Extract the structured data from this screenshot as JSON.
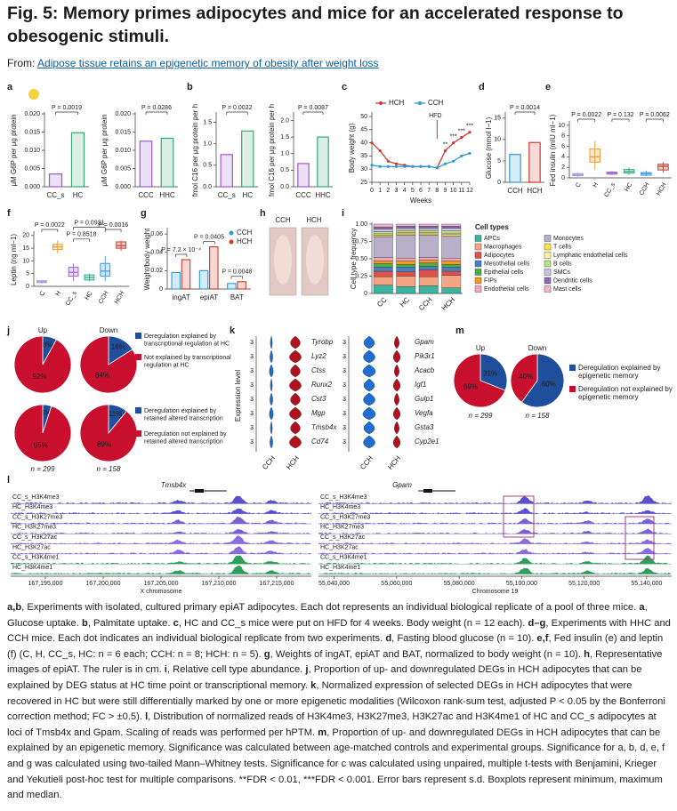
{
  "header": {
    "title": "Fig. 5: Memory primes adipocytes and mice for an accelerated response to obesogenic stimuli.",
    "from_label": "From:",
    "source_link": "Adipose tissue retains an epigenetic memory of obesity after weight loss"
  },
  "figure": {
    "a": {
      "label": "a",
      "charts": [
        {
          "type": "bar",
          "ylabel": "μM G6P per μg protein",
          "ylim": [
            0,
            0.02
          ],
          "yticks": [
            {
              "value": 0,
              "label": "0.000"
            },
            0.005,
            {
              "value": 0.01,
              "label": "0.010"
            },
            0.015,
            {
              "value": 0.02,
              "label": "0.020"
            }
          ],
          "categories": [
            "CC_s",
            "HC"
          ],
          "values": [
            0.0035,
            0.0148
          ],
          "colors": [
            "#9b59d0",
            "#3aa676"
          ],
          "p_label": "P = 0.0019"
        },
        {
          "type": "bar",
          "ylabel": "μM G6P per μg protein",
          "ylim": [
            0,
            0.02
          ],
          "yticks": [
            {
              "value": 0,
              "label": "0.000"
            },
            0.005,
            {
              "value": 0.01,
              "label": "0.010"
            },
            0.015,
            {
              "value": 0.02,
              "label": "0.020"
            }
          ],
          "categories": [
            "CCC",
            "HHC"
          ],
          "values": [
            0.0125,
            0.0133
          ],
          "colors": [
            "#9b59d0",
            "#3aa676"
          ],
          "p_label": "P = 0.0286"
        }
      ]
    },
    "b": {
      "label": "b",
      "charts": [
        {
          "type": "bar",
          "ylabel": "fmol C16 per μg protein per h",
          "ylim": [
            0,
            1.7
          ],
          "yticks": [
            {
              "value": 0,
              "label": "0.0"
            },
            0.5,
            {
              "value": 1,
              "label": "1.0"
            },
            1.5
          ],
          "categories": [
            "CC_s",
            "HC"
          ],
          "values": [
            0.75,
            1.3
          ],
          "colors": [
            "#9b59d0",
            "#3aa676"
          ],
          "p_label": "P = 0.0022"
        },
        {
          "type": "bar",
          "ylabel": "fmol C16 per μg protein per h",
          "ylim": [
            0,
            2.2
          ],
          "yticks": [
            {
              "value": 0,
              "label": "0.0"
            },
            0.5,
            {
              "value": 1,
              "label": "1.0"
            },
            1.5,
            {
              "value": 2,
              "label": "2.0"
            }
          ],
          "categories": [
            "CCC",
            "HHC"
          ],
          "values": [
            0.7,
            1.5
          ],
          "colors": [
            "#9b59d0",
            "#3aa676"
          ],
          "p_label": "P = 0.0087"
        }
      ]
    },
    "c": {
      "label": "c",
      "type": "line",
      "ylabel": "Body weight (g)",
      "xlabel": "Weeks",
      "x": [
        0,
        1,
        2,
        3,
        4,
        5,
        6,
        7,
        8,
        9,
        10,
        11,
        12
      ],
      "xlim": [
        0,
        12
      ],
      "xticks": [
        0,
        1,
        2,
        3,
        4,
        5,
        6,
        7,
        8,
        9,
        10,
        11,
        12
      ],
      "ylim": [
        25,
        51
      ],
      "yticks": [
        25,
        30,
        35,
        40,
        45,
        50
      ],
      "series": [
        {
          "name": "HCH",
          "color": "#d03a2a",
          "values": [
            40,
            37,
            33,
            32,
            31.5,
            31,
            31,
            31,
            30.5,
            37,
            40,
            42,
            44
          ]
        },
        {
          "name": "CCH",
          "color": "#2e9bd6",
          "values": [
            31.5,
            31,
            31,
            31,
            31,
            31,
            31,
            31,
            30.5,
            32,
            33,
            35,
            36
          ]
        }
      ],
      "hfd_label": "HFD",
      "significance": [
        "**",
        "***",
        "***",
        "***"
      ]
    },
    "d": {
      "label": "d",
      "charts": [
        {
          "type": "bar",
          "ylabel": "Glucose (mmol l−1)",
          "ylim": [
            0,
            16
          ],
          "yticks": [
            0,
            5,
            10,
            15
          ],
          "categories": [
            "CCH",
            "HCH"
          ],
          "values": [
            6.5,
            9.3
          ],
          "colors": [
            "#2e9bd6",
            "#d03a2a"
          ],
          "p_label": "P = 0.0014"
        }
      ]
    },
    "e": {
      "label": "e",
      "type": "box",
      "ylabel": "Fed insulin (mIU ml−1)",
      "ylim": [
        0,
        10.5
      ],
      "yticks": [
        0,
        2,
        4,
        6,
        8,
        10
      ],
      "categories": [
        "C",
        "H",
        "CC_s",
        "HC",
        "CCH",
        "HCH"
      ],
      "colors": [
        "#a99de0",
        "#e8a33d",
        "#a070d8",
        "#40b090",
        "#4aa3df",
        "#c94a3a"
      ],
      "min": [
        0.2,
        1.5,
        0.5,
        0.6,
        0.3,
        1.0
      ],
      "q1": [
        0.4,
        3,
        0.7,
        0.9,
        0.5,
        1.5
      ],
      "median": [
        0.6,
        4,
        0.9,
        1.2,
        0.8,
        2.2
      ],
      "q3": [
        0.8,
        5.5,
        1.1,
        1.6,
        1.0,
        2.6
      ],
      "max": [
        1.0,
        7,
        1.3,
        2.0,
        1.4,
        3.0
      ],
      "p_labels": [
        "P = 0.0022",
        "P = 0.132",
        "P = 0.0062"
      ]
    },
    "f": {
      "label": "f",
      "type": "box",
      "ylabel": "Leptin (ng ml−1)",
      "ylim": [
        0,
        21
      ],
      "yticks": [
        0,
        5,
        10,
        15,
        20
      ],
      "categories": [
        "C",
        "H",
        "CC_s",
        "HC",
        "CCH",
        "HCH"
      ],
      "colors": [
        "#a99de0",
        "#e8a33d",
        "#a070d8",
        "#40b090",
        "#4aa3df",
        "#c94a3a"
      ],
      "min": [
        1,
        13,
        2,
        2,
        2,
        14
      ],
      "q1": [
        1.5,
        14.5,
        4,
        2.5,
        4,
        15
      ],
      "median": [
        1.8,
        15.5,
        5.5,
        3.5,
        6,
        16
      ],
      "q3": [
        2.2,
        16.5,
        7.5,
        4.5,
        9,
        17.5
      ],
      "max": [
        2.5,
        18,
        9,
        5,
        12,
        18
      ],
      "p_labels": [
        "P = 0.0022",
        "P = 0.0931",
        "P = 0.0016",
        "P = 0.8518"
      ]
    },
    "g": {
      "label": "g",
      "type": "grouped_bar",
      "ylabel": "Weight/body weight",
      "ylim": [
        0,
        0.065
      ],
      "yticks": [
        0,
        0.02,
        0.04,
        0.06
      ],
      "categories": [
        "ingAT",
        "epiAT",
        "BAT"
      ],
      "series": [
        {
          "name": "CCH",
          "color": "#2e9bd6",
          "values": [
            0.018,
            0.02,
            0.006
          ]
        },
        {
          "name": "HCH",
          "color": "#d03a2a",
          "values": [
            0.032,
            0.046,
            0.008
          ]
        }
      ],
      "p_labels": [
        "P = 7.2 × 10⁻⁴",
        "P = 0.0405",
        "P = 0.0048"
      ]
    },
    "h": {
      "label": "h",
      "images": [
        "CCH",
        "HCH"
      ]
    },
    "i": {
      "label": "i",
      "type": "stacked_bar",
      "ylabel": "Cell type frequency",
      "ylim": [
        0,
        1
      ],
      "yticks": [
        0,
        0.25,
        {
          "value": 0.5,
          "label": "0.50"
        },
        0.75,
        {
          "value": 1,
          "label": "1.00"
        }
      ],
      "categories": [
        "CC",
        "HC",
        "CCH",
        "HCH"
      ],
      "legend_title": "Cell types",
      "series": [
        {
          "name": "APCs",
          "color": "#3cb4a0",
          "values": [
            0.12,
            0.1,
            0.11,
            0.08
          ]
        },
        {
          "name": "Macrophages",
          "color": "#f4a582",
          "values": [
            0.12,
            0.15,
            0.13,
            0.18
          ]
        },
        {
          "name": "Adipocytes",
          "color": "#e0504a",
          "values": [
            0.08,
            0.06,
            0.1,
            0.06
          ]
        },
        {
          "name": "Mesothelial cells",
          "color": "#4a7fc0",
          "values": [
            0.06,
            0.07,
            0.05,
            0.06
          ]
        },
        {
          "name": "Epithelial cells",
          "color": "#4daf4a",
          "values": [
            0.05,
            0.04,
            0.05,
            0.04
          ]
        },
        {
          "name": "FIPs",
          "color": "#f59a23",
          "values": [
            0.04,
            0.05,
            0.04,
            0.05
          ]
        },
        {
          "name": "Endothelial cells",
          "color": "#f4a6c0",
          "values": [
            0.05,
            0.04,
            0.04,
            0.04
          ]
        },
        {
          "name": "Monocytes",
          "color": "#b8b0c8",
          "values": [
            0.3,
            0.33,
            0.32,
            0.32
          ]
        },
        {
          "name": "T cells",
          "color": "#ffe14d",
          "values": [
            0.02,
            0.02,
            0.02,
            0.02
          ]
        },
        {
          "name": "Lymphatic endothelial cells",
          "color": "#fff3a0",
          "values": [
            0.02,
            0.02,
            0.02,
            0.02
          ]
        },
        {
          "name": "B cells",
          "color": "#b8e186",
          "values": [
            0.03,
            0.03,
            0.03,
            0.03
          ]
        },
        {
          "name": "SMCs",
          "color": "#cbc3e3",
          "values": [
            0.04,
            0.03,
            0.03,
            0.04
          ]
        },
        {
          "name": "Dendritic cells",
          "color": "#8c6bb1",
          "values": [
            0.03,
            0.03,
            0.03,
            0.03
          ]
        },
        {
          "name": "Mast cells",
          "color": "#f7b6d2",
          "values": [
            0.04,
            0.03,
            0.03,
            0.03
          ]
        }
      ]
    },
    "j": {
      "label": "j",
      "type": "pie",
      "colors": [
        "#1f4e9c",
        "#c8102e"
      ],
      "pies": [
        {
          "title": "Up",
          "values": [
            8,
            92
          ],
          "value_labels": [
            "8%",
            "92%"
          ]
        },
        {
          "title": "Down",
          "values": [
            16,
            84
          ],
          "value_labels": [
            "16%",
            "84%"
          ]
        },
        {
          "values": [
            5,
            95
          ],
          "value_labels": [
            "5%",
            "95%"
          ]
        },
        {
          "values": [
            11,
            89
          ],
          "value_labels": [
            "11%",
            "89%"
          ]
        }
      ],
      "legend": [
        "Deregulation explained by transcriptional regulation at HC",
        "Not explained by transcriptional regulation at HC",
        "Deregulation explained by retained altered transcription",
        "Deregulation not explained by retained altered transcription"
      ],
      "n_labels": [
        "n = 299",
        "n = 158"
      ]
    },
    "k": {
      "label": "k",
      "ylabel": "Expression level",
      "ytick": 3,
      "genes_left": [
        "Tyrobp",
        "Lyz2",
        "Ctss",
        "Runx2",
        "Cst3",
        "Mgp",
        "Tmsb4x",
        "Cd74"
      ],
      "genes_right": [
        "Gpam",
        "Pik3r1",
        "Acacb",
        "Igf1",
        "Gulp1",
        "Vegfa",
        "Gsta3",
        "Cyp2e1"
      ],
      "groups": [
        "CCH",
        "HCH"
      ]
    },
    "l": {
      "label": "l",
      "left": {
        "gene": "Tmsb4x",
        "tracks": [
          "CC_s_H3K4me3",
          "HC_H3K4me3",
          "CC_s_H3K27me3",
          "HC_H3K27me3",
          "CC_s_H3K27ac",
          "HC_H3K27ac",
          "CC_s_H3K4me1",
          "HC_H3K4me1"
        ],
        "xlim": [
          167192000,
          167218000
        ],
        "xticks": [
          {
            "value": 167195000,
            "label": "167,195,000"
          },
          {
            "value": 167200000,
            "label": "167,200,000"
          },
          {
            "value": 167205000,
            "label": "167,205,000"
          },
          {
            "value": 167210000,
            "label": "167,210,000"
          },
          {
            "value": 167215000,
            "label": "167,215,000"
          }
        ],
        "xlabel": "X chromosome"
      },
      "right": {
        "gene": "Gpam",
        "tracks": [
          "CC_s_H3K4me3",
          "HC_H3K4me3",
          "CC_s_H3K27me3",
          "HC_H3K27me3",
          "CC_s_H3K27ac",
          "HC_H3K27ac",
          "CC_s_H3K4me1",
          "HC_H3K4me1"
        ],
        "xlim": [
          55035000,
          55148000
        ],
        "xticks": [
          {
            "value": 55040000,
            "label": "55,040,000"
          },
          {
            "value": 55060000,
            "label": "55,060,000"
          },
          {
            "value": 55080000,
            "label": "55,080,000"
          },
          {
            "value": 55100000,
            "label": "55,100,000"
          },
          {
            "value": 55120000,
            "label": "55,120,000"
          },
          {
            "value": 55140000,
            "label": "55,140,000"
          }
        ],
        "xlabel": "Chromosome 19"
      }
    },
    "m": {
      "label": "m",
      "type": "pie",
      "colors": [
        "#1f4e9c",
        "#c8102e"
      ],
      "pies": [
        {
          "title": "Up",
          "values": [
            31,
            69
          ],
          "value_labels": [
            "31%",
            "69%"
          ]
        },
        {
          "title": "Down",
          "values": [
            60,
            40
          ],
          "value_labels": [
            "60%",
            "40%"
          ]
        }
      ],
      "legend": [
        "Deregulation explained by epigenetic memory",
        "Deregulation not explained by epigenetic memory"
      ],
      "n_labels": [
        "n = 299",
        "n = 158"
      ]
    }
  },
  "caption": "a,b, Experiments with isolated, cultured primary epiAT adipocytes. Each dot represents an individual biological replicate of a pool of three mice. a, Glucose uptake. b, Palmitate uptake. c, HC and CC_s mice were put on HFD for 4 weeks. Body weight (n = 12 each). d–g, Experiments with HHC and CCH mice. Each dot indicates an individual biological replicate from two experiments. d, Fasting blood glucose (n = 10). e,f, Fed insulin (e) and leptin (f) (C, H, CC_s, HC: n = 6 each; CCH: n = 8; HCH: n = 5). g, Weights of ingAT, epiAT and BAT, normalized to body weight (n = 10). h, Representative images of epiAT. The ruler is in cm. i, Relative cell type abundance. j, Proportion of up- and downregulated DEGs in HCH adipocytes that can be explained by DEG status at HC time point or transcriptional memory. k, Normalized expression of selected DEGs in HCH adipocytes that were recovered in HC but were still differentially marked by one or more epigenetic modalities (Wilcoxon rank-sum test, adjusted P < 0.05 by the Bonferroni correction method; FC > ±0.5). l, Distribution of normalized reads of H3K4me3, H3K27me3, H3K27ac and H3K4me1 of HC and CC_s adipocytes at loci of Tmsb4x and Gpam. Scaling of reads was performed per hPTM. m, Proportion of up- and downregulated DEGs in HCH adipocytes that can be explained by an epigenetic memory. Significance was calculated between age-matched controls and experimental groups. Significance for a, b, d, e, f and g was calculated using two-tailed Mann–Whitney tests. Significance for c was calculated using unpaired, multiple t-tests with Benjamini, Krieger and Yekutieli post-hoc test for multiple comparisons. **FDR < 0.01, ***FDR < 0.001. Error bars represent s.d. Boxplots represent minimum, maximum and median."
}
